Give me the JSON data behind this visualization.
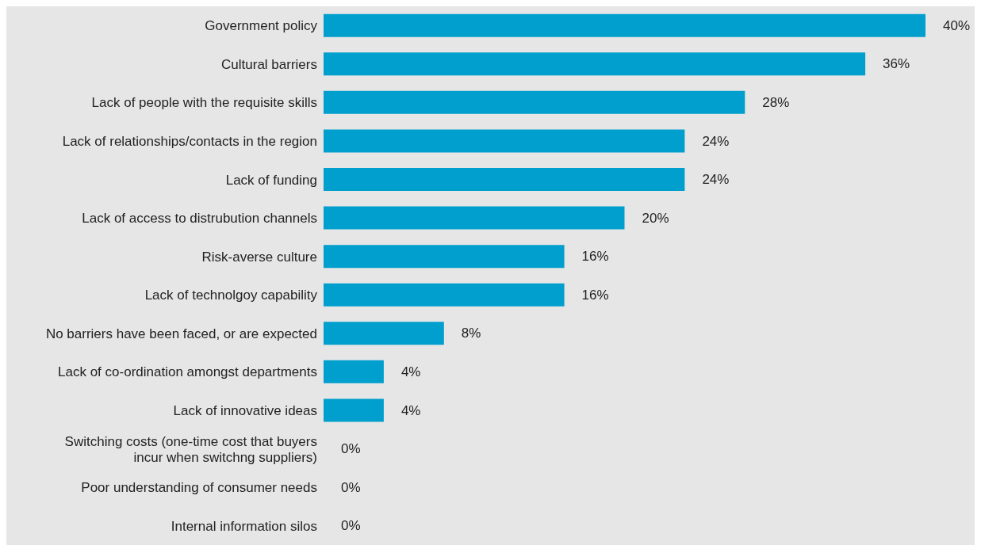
{
  "chart_data": {
    "type": "bar",
    "orientation": "horizontal",
    "color": "#009fcd",
    "categories": [
      "Government policy",
      "Cultural barriers",
      "Lack of people with the requisite skills",
      "Lack of relationships/contacts in the region",
      "Lack of funding",
      "Lack of access to distrubution channels",
      "Risk-averse culture",
      "Lack of technolgoy capability",
      "No barriers have been faced, or are expected",
      "Lack of co-ordination amongst departments",
      "Lack of innovative ideas",
      "Switching costs (one-time cost that buyers incur when switchng suppliers)",
      "Poor understanding of consumer needs",
      "Internal information silos"
    ],
    "values": [
      40,
      36,
      28,
      24,
      24,
      20,
      16,
      16,
      8,
      4,
      4,
      0,
      0,
      0
    ],
    "value_labels": [
      "40%",
      "36%",
      "28%",
      "24%",
      "24%",
      "20%",
      "16%",
      "16%",
      "8%",
      "4%",
      "4%",
      "0%",
      "0%",
      "0%"
    ]
  }
}
